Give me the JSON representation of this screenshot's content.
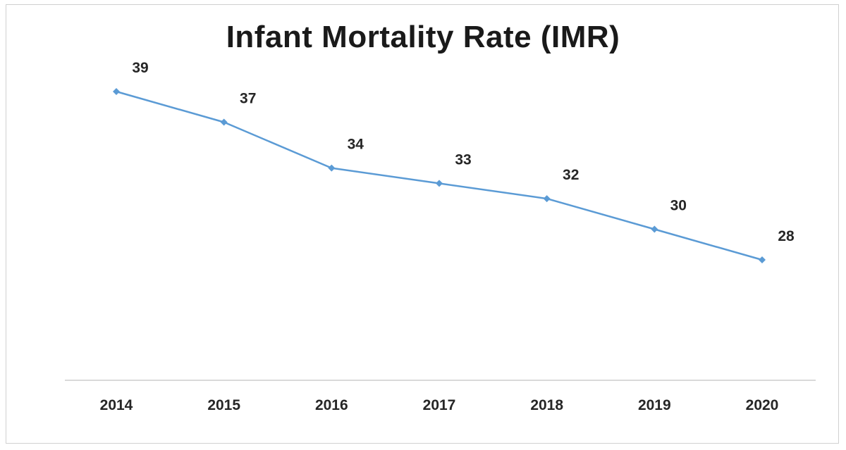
{
  "chart_data": {
    "type": "line",
    "title": "Infant Mortality Rate (IMR)",
    "xlabel": "",
    "ylabel": "",
    "categories": [
      "2014",
      "2015",
      "2016",
      "2017",
      "2018",
      "2019",
      "2020"
    ],
    "series": [
      {
        "values": [
          39,
          37,
          34,
          33,
          32,
          30,
          28
        ],
        "color": "#5b9bd5"
      }
    ],
    "ylim": [
      21,
      45
    ],
    "grid": false,
    "legend": "none",
    "data_labels": true,
    "markers": "diamond"
  }
}
